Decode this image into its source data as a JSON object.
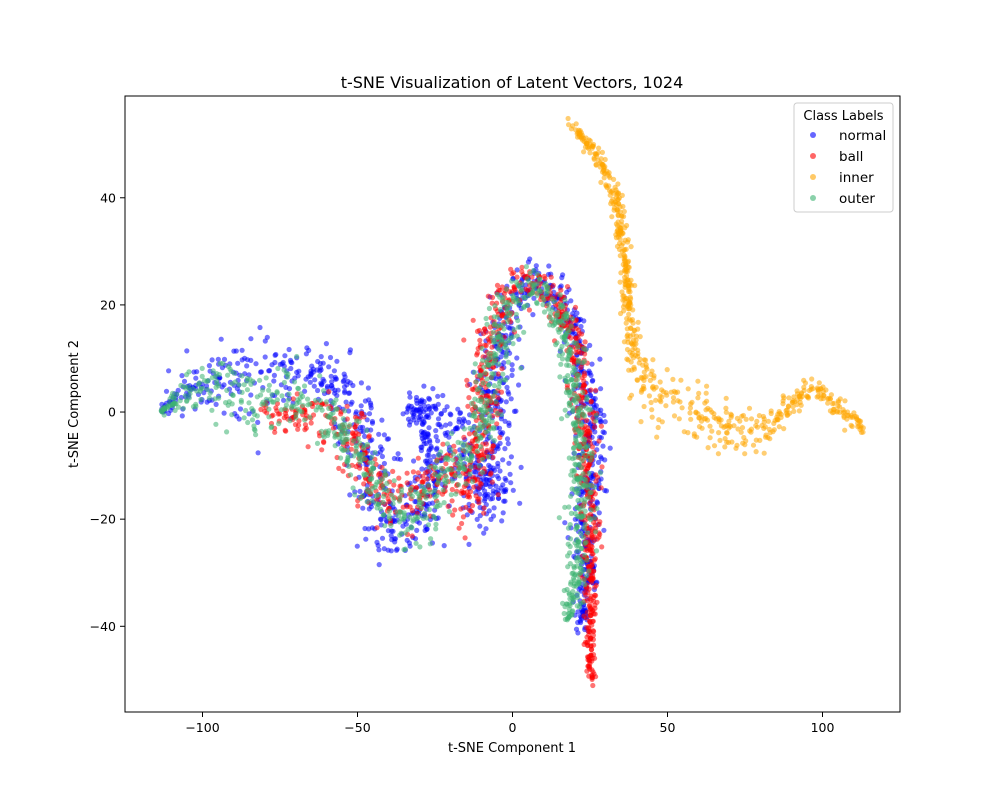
{
  "chart_data": {
    "type": "scatter",
    "title": "t-SNE Visualization of Latent Vectors, 1024",
    "xlabel": "t-SNE Component 1",
    "ylabel": "t-SNE Component 2",
    "xlim": [
      -125,
      125
    ],
    "ylim": [
      -56,
      59
    ],
    "x_ticks": [
      -100,
      -50,
      0,
      50,
      100
    ],
    "y_ticks": [
      -40,
      -20,
      0,
      20,
      40
    ],
    "grid": false,
    "legend": {
      "title": "Class Labels",
      "position": "top-right"
    },
    "series": [
      {
        "name": "normal",
        "color": "#0000ff",
        "path": [
          [
            -113,
            0
          ],
          [
            -108,
            3
          ],
          [
            -100,
            5.5
          ],
          [
            -90,
            6
          ],
          [
            -80,
            7
          ],
          [
            -72,
            8
          ],
          [
            -63,
            8
          ],
          [
            -55,
            4
          ],
          [
            -50,
            0
          ],
          [
            -46,
            -8
          ],
          [
            -43,
            -17
          ],
          [
            -40,
            -22
          ],
          [
            -35,
            -22
          ],
          [
            -28,
            -18
          ],
          [
            -25,
            -10
          ],
          [
            -28,
            -3
          ],
          [
            -33,
            0
          ],
          [
            -28,
            2
          ],
          [
            -18,
            -3
          ],
          [
            -12,
            -12
          ],
          [
            -8,
            -18
          ],
          [
            -5,
            -14
          ],
          [
            -6,
            0
          ],
          [
            -5,
            10
          ],
          [
            0,
            20
          ],
          [
            5,
            25
          ],
          [
            12,
            24
          ],
          [
            18,
            18
          ],
          [
            22,
            10
          ],
          [
            25,
            0
          ],
          [
            26,
            -10
          ],
          [
            25,
            -20
          ],
          [
            24,
            -32
          ],
          [
            22,
            -40
          ]
        ],
        "spread": [
          0.3,
          2,
          3,
          4,
          5,
          4,
          3,
          4,
          4,
          4,
          4,
          4,
          4,
          4,
          3,
          2,
          2,
          2,
          3,
          3,
          4,
          3,
          4,
          4,
          3,
          2,
          2,
          2,
          2,
          3,
          3,
          3,
          2,
          1
        ]
      },
      {
        "name": "ball",
        "color": "#ff0000",
        "path": [
          [
            -80,
            0
          ],
          [
            -60,
            -1
          ],
          [
            -52,
            -3
          ],
          [
            -48,
            -10
          ],
          [
            -43,
            -15
          ],
          [
            -37,
            -17
          ],
          [
            -30,
            -15
          ],
          [
            -22,
            -10
          ],
          [
            -18,
            -12
          ],
          [
            -14,
            -16
          ],
          [
            -10,
            -10
          ],
          [
            -10,
            0
          ],
          [
            -8,
            12
          ],
          [
            -3,
            20
          ],
          [
            5,
            24
          ],
          [
            12,
            23
          ],
          [
            18,
            17
          ],
          [
            22,
            8
          ],
          [
            24,
            -5
          ],
          [
            25,
            -20
          ],
          [
            25,
            -35
          ],
          [
            25,
            -42
          ],
          [
            25,
            -47
          ],
          [
            26,
            -50
          ]
        ],
        "spread": [
          2,
          3,
          3,
          3,
          3,
          3,
          3,
          3,
          3,
          3,
          3,
          3,
          3,
          3,
          2,
          2,
          2,
          2,
          2,
          2,
          1.5,
          1,
          0.8,
          0.5
        ]
      },
      {
        "name": "inner",
        "color": "#ffa500",
        "path": [
          [
            18,
            54
          ],
          [
            25,
            50
          ],
          [
            31,
            44
          ],
          [
            35,
            36
          ],
          [
            37,
            25
          ],
          [
            38,
            15
          ],
          [
            40,
            8
          ],
          [
            45,
            4
          ],
          [
            52,
            2
          ],
          [
            60,
            0
          ],
          [
            67,
            -2
          ],
          [
            73,
            -4
          ],
          [
            79,
            -4
          ],
          [
            84,
            -2
          ],
          [
            89,
            1
          ],
          [
            94,
            4
          ],
          [
            98,
            4.5
          ],
          [
            103,
            2
          ],
          [
            108,
            -0.5
          ],
          [
            113,
            -3
          ]
        ],
        "spread": [
          0.5,
          0.8,
          1,
          1,
          1,
          1.5,
          2.5,
          3,
          3,
          3,
          3,
          2.5,
          2,
          1.5,
          1.2,
          1,
          1,
          1,
          1,
          0.8
        ]
      },
      {
        "name": "outer",
        "color": "#3cb371",
        "path": [
          [
            -113,
            0
          ],
          [
            -108,
            3
          ],
          [
            -100,
            4.5
          ],
          [
            -90,
            3.5
          ],
          [
            -80,
            3
          ],
          [
            -70,
            3
          ],
          [
            -60,
            0
          ],
          [
            -53,
            -4
          ],
          [
            -48,
            -10
          ],
          [
            -43,
            -15
          ],
          [
            -38,
            -18
          ],
          [
            -32,
            -20
          ],
          [
            -26,
            -17
          ],
          [
            -20,
            -10
          ],
          [
            -15,
            -8
          ],
          [
            -10,
            -5
          ],
          [
            -8,
            5
          ],
          [
            -4,
            17
          ],
          [
            2,
            22
          ],
          [
            8,
            23
          ],
          [
            14,
            20
          ],
          [
            18,
            12
          ],
          [
            21,
            0
          ],
          [
            22,
            -10
          ],
          [
            22,
            -20
          ],
          [
            21,
            -30
          ],
          [
            19,
            -36
          ],
          [
            17,
            -39
          ]
        ],
        "spread": [
          0.3,
          1.5,
          2.5,
          3,
          3.5,
          3.5,
          3,
          3,
          3,
          3,
          3,
          3,
          3,
          3,
          2.5,
          2.5,
          3,
          3,
          2,
          2,
          2,
          2.5,
          2.5,
          2.5,
          2.5,
          2,
          1.5,
          1
        ]
      }
    ]
  }
}
